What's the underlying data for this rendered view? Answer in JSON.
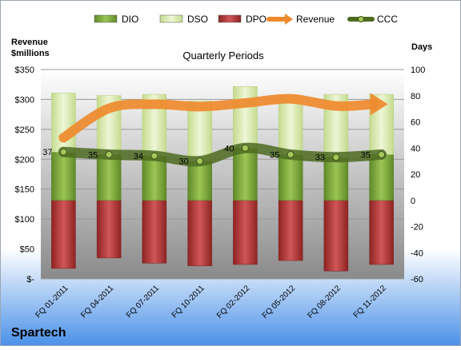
{
  "chart_data": {
    "type": "bar",
    "title": "Quarterly Periods",
    "company": "Spartech",
    "left_axis_title": [
      "Revenue",
      "$millions"
    ],
    "right_axis_title": "Days",
    "categories": [
      "FQ 01-2011",
      "FQ 04-2011",
      "FQ 07-2011",
      "FQ 10-2011",
      "FQ 02-2012",
      "FQ 05-2012",
      "FQ 08-2012",
      "FQ 11-2012"
    ],
    "left_axis": {
      "min": 0,
      "max": 350,
      "step": 50,
      "tick_labels": [
        "$-",
        "$50",
        "$100",
        "$150",
        "$200",
        "$250",
        "$300",
        "$350"
      ]
    },
    "right_axis": {
      "min": -60,
      "max": 100,
      "step": 20,
      "tick_labels": [
        "-60",
        "-40",
        "-20",
        "0",
        "20",
        "40",
        "60",
        "80",
        "100"
      ]
    },
    "series": [
      {
        "name": "DIO",
        "kind": "bar",
        "axis": "right",
        "color": "#7aa63a",
        "values": [
          37,
          35,
          34,
          30,
          40,
          35,
          33,
          35
        ]
      },
      {
        "name": "DSO",
        "kind": "bar",
        "axis": "right",
        "color": "#d6e8a8",
        "values": [
          45,
          45,
          47,
          46,
          47,
          45,
          48,
          46
        ]
      },
      {
        "name": "DPO",
        "kind": "bar",
        "axis": "right",
        "color": "#b23b3b",
        "values": [
          -52,
          -44,
          -48,
          -50,
          -49,
          -46,
          -54,
          -49
        ]
      },
      {
        "name": "Revenue",
        "kind": "line",
        "axis": "left",
        "color": "#ef8a2e",
        "values": [
          236,
          285,
          292,
          288,
          294,
          301,
          289,
          292
        ]
      },
      {
        "name": "CCC",
        "kind": "line",
        "axis": "right",
        "color": "#5a7a2a",
        "values": [
          37,
          35,
          34,
          30,
          40,
          35,
          33,
          35
        ],
        "data_labels": [
          "37",
          "35",
          "34",
          "30",
          "40",
          "35",
          "33",
          "35"
        ]
      }
    ],
    "legend": [
      "DIO",
      "DSO",
      "DPO",
      "Revenue",
      "CCC"
    ],
    "legend_position": "top"
  }
}
